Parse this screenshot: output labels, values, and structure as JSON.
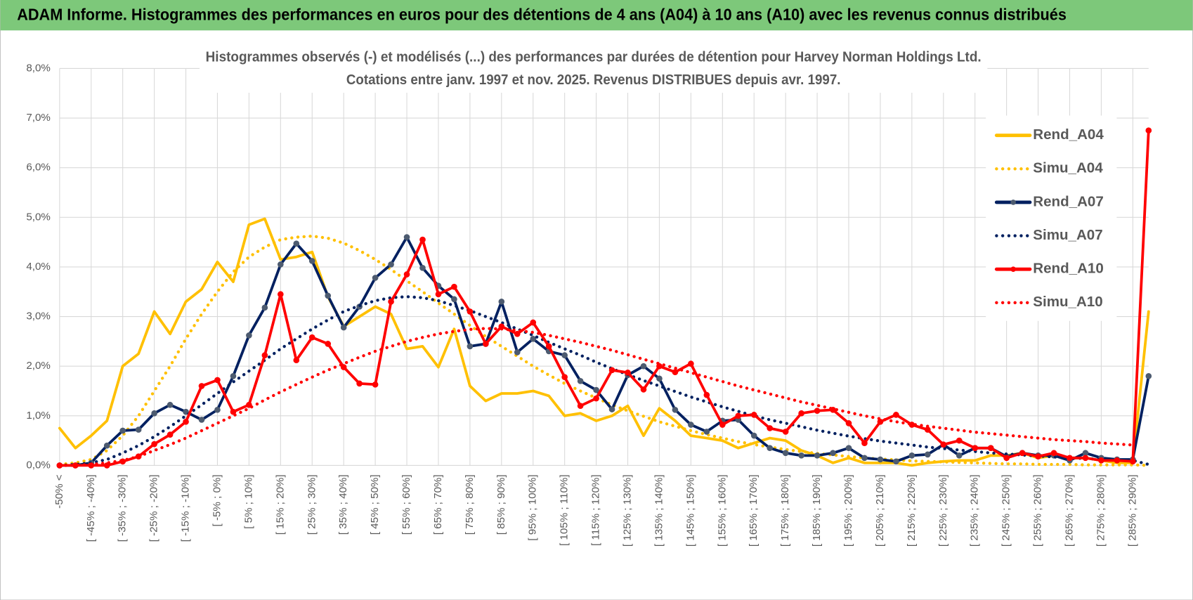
{
  "header": {
    "title": "ADAM Informe. Histogrammes des performances en euros pour des détentions de 4 ans (A04) à 10 ans (A10) avec les revenus connus distribués"
  },
  "chart_data": {
    "type": "line",
    "title": "Histogrammes observés (-) et modélisés (...) des performances par durées de détention pour Harvey Norman Holdings Ltd.",
    "subtitle": "Cotations entre janv. 1997 et nov. 2025. Revenus DISTRIBUES depuis avr. 1997.",
    "categories": [
      "-50% <",
      null,
      "[ -45% ; -40%]",
      null,
      "[ -35% ; -30%]",
      null,
      "[ -25% ; -20%]",
      null,
      "[ -15% ; -10%]",
      null,
      "[ -5% ; 0%]",
      null,
      "[ 5% ; 10%]",
      null,
      "[ 15% ; 20%]",
      null,
      "[ 25% ; 30%]",
      null,
      "[ 35% ; 40%]",
      null,
      "[ 45% ; 50%]",
      null,
      "[ 55% ; 60%]",
      null,
      "[ 65% ; 70%]",
      null,
      "[ 75% ; 80%]",
      null,
      "[ 85% ; 90%]",
      null,
      "[ 95% ; 100%]",
      null,
      "[ 105% ; 110%]",
      null,
      "[ 115% ; 120%]",
      null,
      "[ 125% ; 130%]",
      null,
      "[ 135% ; 140%]",
      null,
      "[ 145% ; 150%]",
      null,
      "[ 155% ; 160%]",
      null,
      "[ 165% ; 170%]",
      null,
      "[ 175% ; 180%]",
      null,
      "[ 185% ; 190%]",
      null,
      "[ 195% ; 200%]",
      null,
      "[ 205% ; 210%]",
      null,
      "[ 215% ; 220%]",
      null,
      "[ 225% ; 230%]",
      null,
      "[ 235% ; 240%]",
      null,
      "[ 245% ; 250%]",
      null,
      "[ 255% ; 260%]",
      null,
      "[ 265% ; 270%]",
      null,
      "[ 275% ; 280%]",
      null,
      "[ 285% ; 290%]",
      null
    ],
    "series": [
      {
        "name": "Rend_A04",
        "color": "#FFC000",
        "style": "solid",
        "markers": false,
        "values": [
          0.75,
          0.35,
          0.6,
          0.9,
          2.0,
          2.25,
          3.1,
          2.65,
          3.3,
          3.55,
          4.1,
          3.7,
          4.85,
          4.97,
          4.15,
          4.2,
          4.3,
          3.4,
          2.8,
          3.0,
          3.2,
          3.05,
          2.35,
          2.4,
          1.98,
          2.75,
          1.6,
          1.3,
          1.45,
          1.45,
          1.5,
          1.4,
          1.0,
          1.05,
          0.9,
          1.0,
          1.2,
          0.6,
          1.15,
          0.9,
          0.6,
          0.55,
          0.5,
          0.35,
          0.45,
          0.55,
          0.5,
          0.3,
          0.2,
          0.05,
          0.15,
          0.05,
          0.05,
          0.05,
          0.0,
          0.05,
          0.08,
          0.1,
          0.1,
          0.2,
          0.2,
          0.25,
          0.15,
          0.2,
          0.15,
          0.15,
          0.1,
          0.05,
          0.05,
          3.1
        ]
      },
      {
        "name": "Simu_A04",
        "color": "#FFC000",
        "style": "dotted",
        "markers": false,
        "values": [
          0.02,
          0.05,
          0.12,
          0.3,
          0.6,
          1.0,
          1.5,
          2.0,
          2.55,
          3.05,
          3.5,
          3.9,
          4.2,
          4.4,
          4.55,
          4.6,
          4.62,
          4.58,
          4.48,
          4.33,
          4.15,
          3.95,
          3.72,
          3.5,
          3.27,
          3.05,
          2.82,
          2.6,
          2.4,
          2.2,
          2.0,
          1.82,
          1.65,
          1.5,
          1.36,
          1.22,
          1.1,
          0.99,
          0.88,
          0.79,
          0.7,
          0.62,
          0.55,
          0.48,
          0.42,
          0.37,
          0.32,
          0.28,
          0.24,
          0.21,
          0.18,
          0.15,
          0.13,
          0.11,
          0.09,
          0.08,
          0.07,
          0.06,
          0.05,
          0.04,
          0.03,
          0.03,
          0.02,
          0.02,
          0.02,
          0.01,
          0.01,
          0.01,
          0.01,
          0
        ]
      },
      {
        "name": "Rend_A07",
        "color": "#002060",
        "style": "solid",
        "markers": true,
        "marker": "#4d5b70",
        "values": [
          0,
          0,
          0.05,
          0.4,
          0.7,
          0.72,
          1.05,
          1.22,
          1.08,
          0.92,
          1.12,
          1.8,
          2.62,
          3.18,
          4.05,
          4.47,
          4.12,
          3.42,
          2.78,
          3.2,
          3.78,
          4.05,
          4.6,
          3.98,
          3.62,
          3.35,
          2.4,
          2.45,
          3.3,
          2.28,
          2.55,
          2.3,
          2.22,
          1.7,
          1.52,
          1.13,
          1.82,
          2.0,
          1.75,
          1.12,
          0.82,
          0.68,
          0.9,
          0.92,
          0.6,
          0.35,
          0.25,
          0.2,
          0.2,
          0.25,
          0.35,
          0.15,
          0.12,
          0.08,
          0.2,
          0.22,
          0.42,
          0.2,
          0.35,
          0.35,
          0.18,
          0.25,
          0.2,
          0.2,
          0.1,
          0.25,
          0.15,
          0.12,
          0.12,
          1.8
        ]
      },
      {
        "name": "Simu_A07",
        "color": "#002060",
        "style": "dotted",
        "markers": false,
        "values": [
          0,
          0.02,
          0.05,
          0.12,
          0.25,
          0.4,
          0.58,
          0.78,
          1.0,
          1.22,
          1.45,
          1.68,
          1.9,
          2.12,
          2.35,
          2.55,
          2.75,
          2.93,
          3.1,
          3.22,
          3.32,
          3.38,
          3.4,
          3.38,
          3.32,
          3.22,
          3.12,
          3.0,
          2.88,
          2.75,
          2.62,
          2.48,
          2.35,
          2.22,
          2.08,
          1.95,
          1.83,
          1.71,
          1.6,
          1.49,
          1.38,
          1.28,
          1.18,
          1.09,
          1.0,
          0.92,
          0.85,
          0.78,
          0.71,
          0.65,
          0.59,
          0.54,
          0.49,
          0.45,
          0.41,
          0.37,
          0.34,
          0.31,
          0.28,
          0.25,
          0.23,
          0.21,
          0.19,
          0.17,
          0.15,
          0.14,
          0.12,
          0.11,
          0.1,
          0.02
        ]
      },
      {
        "name": "Rend_A10",
        "color": "#FF0000",
        "style": "solid",
        "markers": true,
        "marker": "#FF0000",
        "values": [
          0,
          0,
          0,
          0,
          0.08,
          0.18,
          0.43,
          0.62,
          0.88,
          1.6,
          1.72,
          1.08,
          1.22,
          2.22,
          3.45,
          2.12,
          2.58,
          2.45,
          1.98,
          1.65,
          1.63,
          3.3,
          3.85,
          4.55,
          3.45,
          3.6,
          3.1,
          2.45,
          2.8,
          2.65,
          2.88,
          2.4,
          1.78,
          1.2,
          1.35,
          1.92,
          1.87,
          1.53,
          2.0,
          1.88,
          2.05,
          1.42,
          0.82,
          1.0,
          1.02,
          0.75,
          0.68,
          1.05,
          1.1,
          1.12,
          0.85,
          0.45,
          0.88,
          1.02,
          0.82,
          0.72,
          0.42,
          0.5,
          0.35,
          0.35,
          0.15,
          0.25,
          0.18,
          0.25,
          0.15,
          0.15,
          0.1,
          0.1,
          0.08,
          6.75
        ]
      },
      {
        "name": "Simu_A10",
        "color": "#FF0000",
        "style": "dotted",
        "markers": false,
        "values": [
          0,
          0,
          0.02,
          0.05,
          0.1,
          0.18,
          0.3,
          0.42,
          0.55,
          0.7,
          0.85,
          1.0,
          1.15,
          1.32,
          1.48,
          1.63,
          1.78,
          1.92,
          2.05,
          2.18,
          2.3,
          2.4,
          2.5,
          2.58,
          2.65,
          2.7,
          2.74,
          2.76,
          2.75,
          2.72,
          2.68,
          2.62,
          2.55,
          2.48,
          2.4,
          2.32,
          2.23,
          2.14,
          2.05,
          1.96,
          1.87,
          1.78,
          1.69,
          1.6,
          1.52,
          1.44,
          1.36,
          1.28,
          1.21,
          1.14,
          1.07,
          1.0,
          0.94,
          0.88,
          0.83,
          0.79,
          0.75,
          0.71,
          0.67,
          0.64,
          0.61,
          0.58,
          0.55,
          0.52,
          0.5,
          0.48,
          0.45,
          0.43,
          0.41,
          null
        ]
      }
    ],
    "ylim": [
      0,
      8
    ],
    "yticks": [
      {
        "value": 0,
        "label": "0,0%"
      },
      {
        "value": 1,
        "label": "1,0%"
      },
      {
        "value": 2,
        "label": "2,0%"
      },
      {
        "value": 3,
        "label": "3,0%"
      },
      {
        "value": 4,
        "label": "4,0%"
      },
      {
        "value": 5,
        "label": "5,0%"
      },
      {
        "value": 6,
        "label": "6,0%"
      },
      {
        "value": 7,
        "label": "7,0%"
      },
      {
        "value": 8,
        "label": "8,0%"
      }
    ],
    "grid": true,
    "legend": "right"
  }
}
